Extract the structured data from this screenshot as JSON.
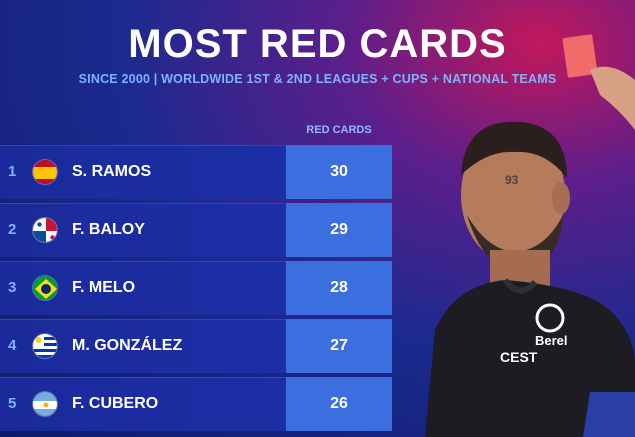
{
  "header": {
    "title": "MOST RED CARDS",
    "subtitle": "SINCE 2000 | WORLDWIDE 1ST & 2ND LEAGUES + CUPS + NATIONAL TEAMS"
  },
  "table": {
    "column_header": "RED CARDS",
    "rows": [
      {
        "rank": "1",
        "name": "S. RAMOS",
        "value": "30",
        "flag": "spain-flag-icon"
      },
      {
        "rank": "2",
        "name": "F. BALOY",
        "value": "29",
        "flag": "panama-flag-icon"
      },
      {
        "rank": "3",
        "name": "F. MELO",
        "value": "28",
        "flag": "brazil-flag-icon"
      },
      {
        "rank": "4",
        "name": "M. GONZÁLEZ",
        "value": "27",
        "flag": "uruguay-flag-icon"
      },
      {
        "rank": "5",
        "name": "F. CUBERO",
        "value": "26",
        "flag": "argentina-flag-icon"
      }
    ]
  },
  "player_image": {
    "jersey_text_1": "Berel",
    "jersey_text_2": "CEST",
    "jersey_number": "93"
  },
  "colors": {
    "accent": "#3b6fe0",
    "row_bg": "#1d2fa6",
    "subtitle": "#7fb2ff",
    "red_card": "#f26b6b"
  }
}
